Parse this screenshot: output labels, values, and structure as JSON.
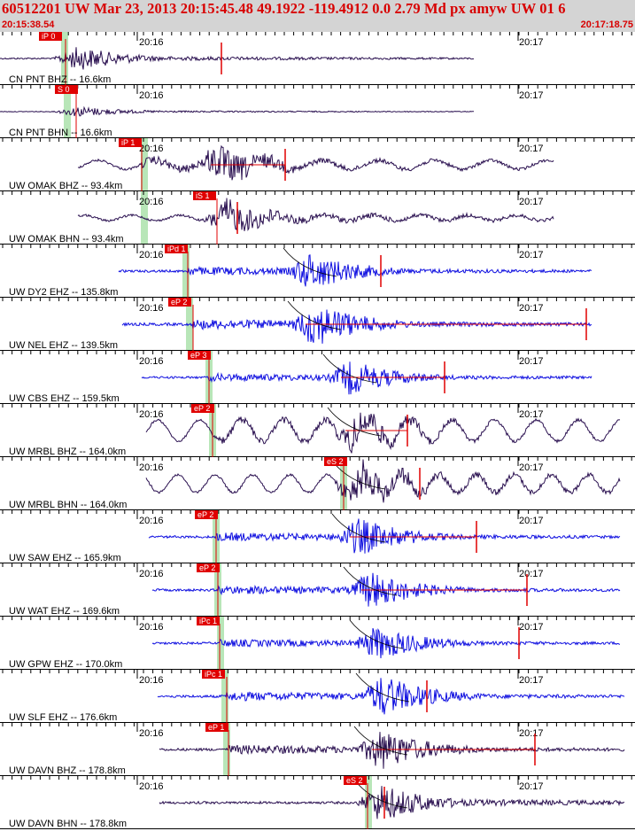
{
  "header": {
    "title": "60512201 UW Mar 23, 2013 20:15:45.48    49.1922 -119.4912  0.0 2.79 Md px amyw UW 01    6",
    "start_time": "20:15:38.54",
    "end_time": "20:17:18.75"
  },
  "colors": {
    "header_text": "#d80000",
    "header_bg": "#d4d4d4",
    "trace_dark": "#2a1050",
    "trace_blue": "#1010e0",
    "pick_box": "#e00000",
    "pick_band": "#b8e6b8",
    "coda_line": "#000000"
  },
  "chart_data": {
    "type": "line",
    "title": "",
    "x_axis": {
      "start": "20:15:38.54",
      "end": "20:17:18.75",
      "tick_labels": [
        "20:16",
        "20:17"
      ]
    },
    "traces": [
      {
        "label": "CN PNT BHZ -- 16.6km",
        "distance_km": 16.6,
        "color": "dark",
        "pick": "iP 0"
      },
      {
        "label": "CN PNT BHN -- 16.6km",
        "distance_km": 16.6,
        "color": "dark",
        "pick": "S 0"
      },
      {
        "label": "UW OMAK BHZ -- 93.4km",
        "distance_km": 93.4,
        "color": "dark",
        "pick": "iP 1"
      },
      {
        "label": "UW OMAK BHN -- 93.4km",
        "distance_km": 93.4,
        "color": "dark",
        "pick": "iS 1"
      },
      {
        "label": "UW DY2 EHZ -- 135.8km",
        "distance_km": 135.8,
        "color": "blue",
        "pick": "iPd 1"
      },
      {
        "label": "UW NEL EHZ -- 139.5km",
        "distance_km": 139.5,
        "color": "blue",
        "pick": "eP 2"
      },
      {
        "label": "UW CBS EHZ -- 159.5km",
        "distance_km": 159.5,
        "color": "blue",
        "pick": "eP 3"
      },
      {
        "label": "UW MRBL BHZ -- 164.0km",
        "distance_km": 164.0,
        "color": "dark",
        "pick": "eP 2"
      },
      {
        "label": "UW MRBL BHN -- 164.0km",
        "distance_km": 164.0,
        "color": "dark",
        "pick": "eS 2"
      },
      {
        "label": "UW SAW EHZ -- 165.9km",
        "distance_km": 165.9,
        "color": "blue",
        "pick": "eP 2"
      },
      {
        "label": "UW WAT EHZ -- 169.6km",
        "distance_km": 169.6,
        "color": "blue",
        "pick": "eP 2"
      },
      {
        "label": "UW GPW EHZ -- 170.0km",
        "distance_km": 170.0,
        "color": "blue",
        "pick": "iPc 1"
      },
      {
        "label": "UW SLF EHZ -- 176.6km",
        "distance_km": 176.6,
        "color": "blue",
        "pick": "iPc 1"
      },
      {
        "label": "UW DAVN BHZ -- 178.8km",
        "distance_km": 178.8,
        "color": "dark",
        "pick": "eP 1"
      },
      {
        "label": "UW DAVN BHN -- 178.8km",
        "distance_km": 178.8,
        "color": "dark",
        "pick": "eS 2"
      }
    ]
  }
}
